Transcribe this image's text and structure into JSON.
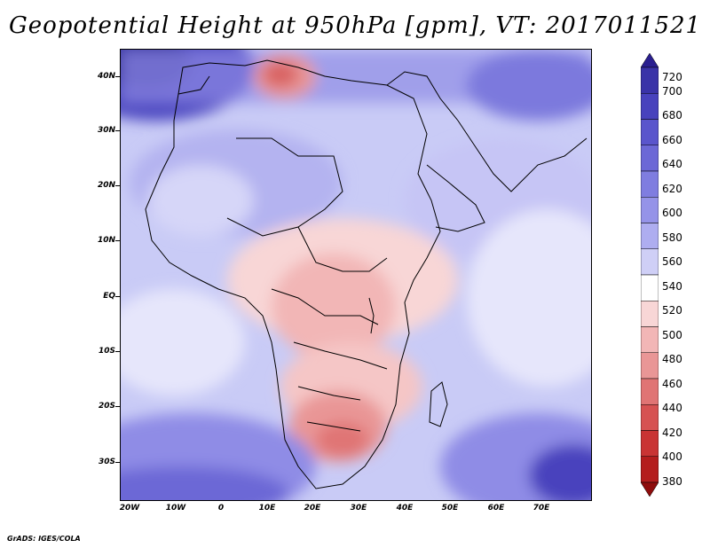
{
  "title": "Geopotential Height at 950hPa [gpm], VT: 2017011521",
  "footer": "GrADS: IGES/COLA",
  "map": {
    "lat_ticks": [
      "40N",
      "30N",
      "20N",
      "10N",
      "EQ",
      "10S",
      "20S",
      "30S"
    ],
    "lon_ticks": [
      "20W",
      "10W",
      "0",
      "10E",
      "20E",
      "30E",
      "40E",
      "50E",
      "60E",
      "70E"
    ]
  },
  "colorbar": {
    "levels": [
      "720",
      "700",
      "680",
      "660",
      "640",
      "620",
      "600",
      "580",
      "560",
      "540",
      "520",
      "500",
      "480",
      "460",
      "440",
      "420",
      "400",
      "380"
    ],
    "colors": [
      "#2a1f8f",
      "#3a33a8",
      "#4842bd",
      "#5a55cc",
      "#6c68d6",
      "#7f7de0",
      "#9593e8",
      "#aeadf0",
      "#cfcff6",
      "#ffffff",
      "#f8d6d6",
      "#f2b6b6",
      "#e99696",
      "#e07474",
      "#d65252",
      "#c93434",
      "#b41d1d",
      "#8e0c0c"
    ]
  }
}
